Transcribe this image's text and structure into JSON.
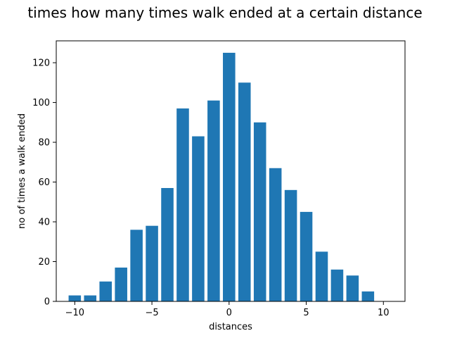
{
  "chart_data": {
    "type": "bar",
    "title": "times how many times walk ended at a certain distance",
    "xlabel": "distances",
    "ylabel": "no of times a walk ended",
    "x": [
      -10,
      -9,
      -8,
      -7,
      -6,
      -5,
      -4,
      -3,
      -2,
      -1,
      0,
      1,
      2,
      3,
      4,
      5,
      6,
      7,
      8,
      9,
      10
    ],
    "values": [
      3,
      3,
      10,
      17,
      36,
      38,
      57,
      97,
      83,
      101,
      125,
      110,
      90,
      67,
      56,
      45,
      25,
      16,
      13,
      5,
      0
    ],
    "xlim": [
      -11.2,
      11.4
    ],
    "ylim": [
      0,
      131
    ],
    "xticks": [
      -10,
      -5,
      0,
      5,
      10
    ],
    "yticks": [
      0,
      20,
      40,
      60,
      80,
      100,
      120
    ],
    "bar_color": "#1f77b4",
    "grid": false,
    "legend": false
  }
}
